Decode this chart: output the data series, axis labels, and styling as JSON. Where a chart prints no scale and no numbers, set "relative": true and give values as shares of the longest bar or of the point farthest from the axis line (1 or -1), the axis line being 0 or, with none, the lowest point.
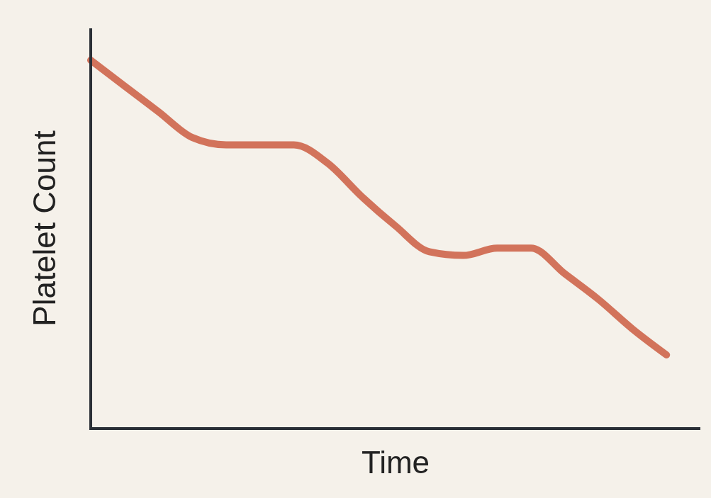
{
  "chart_data": {
    "type": "line",
    "xlabel": "Time",
    "ylabel": "Platelet Count",
    "relative": true,
    "categories": [
      null,
      null,
      null,
      null,
      null,
      null,
      null,
      null,
      null,
      null,
      null,
      null,
      null,
      null,
      null,
      null,
      null,
      null,
      null
    ],
    "series": [
      {
        "color": "#d2735b",
        "values": [
          1.0,
          0.93,
          0.86,
          0.79,
          0.77,
          0.77,
          0.77,
          0.72,
          0.63,
          0.55,
          0.48,
          0.47,
          0.49,
          0.49,
          0.42,
          0.35,
          0.27,
          0.2,
          null
        ]
      }
    ],
    "line_style": "solid",
    "marker": "none",
    "grid": false
  }
}
